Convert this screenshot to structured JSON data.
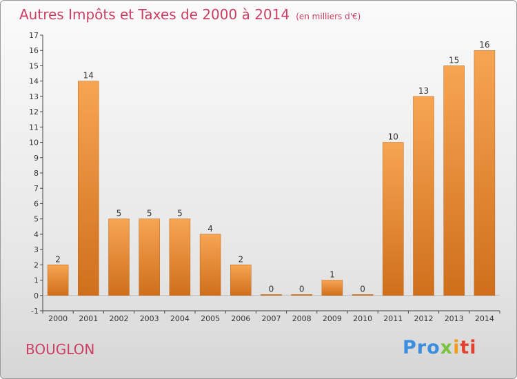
{
  "header": {
    "title": "Autres Impôts et Taxes de 2000 à 2014",
    "unit": "(en milliers d'€)"
  },
  "footer": {
    "city": "BOUGLON",
    "logo_text": "Proxiti",
    "logo_parts": [
      "Pro",
      "x",
      "i",
      "ti"
    ]
  },
  "colors": {
    "title": "#cc3f63",
    "bar_light": "#f7a552",
    "bar_dark": "#cf6f1c",
    "axis": "#444444"
  },
  "chart_data": {
    "type": "bar",
    "title": "Autres Impôts et Taxes de 2000 à 2014",
    "subtitle": "(en milliers d'€)",
    "xlabel": "",
    "ylabel": "",
    "ylim": [
      -1,
      17
    ],
    "yticks": [
      -1,
      0,
      1,
      2,
      3,
      4,
      5,
      6,
      7,
      8,
      9,
      10,
      11,
      12,
      13,
      14,
      15,
      16,
      17
    ],
    "categories": [
      "2000",
      "2001",
      "2002",
      "2003",
      "2004",
      "2005",
      "2006",
      "2007",
      "2008",
      "2009",
      "2010",
      "2011",
      "2012",
      "2013",
      "2014"
    ],
    "values": [
      2,
      14,
      5,
      5,
      5,
      4,
      2,
      0,
      0,
      1,
      0,
      10,
      13,
      15,
      16
    ],
    "data_labels": [
      "2",
      "14",
      "5",
      "5",
      "5",
      "4",
      "2",
      "0",
      "0",
      "1",
      "0",
      "10",
      "13",
      "15",
      "16"
    ],
    "grid": false,
    "legend": "none"
  }
}
